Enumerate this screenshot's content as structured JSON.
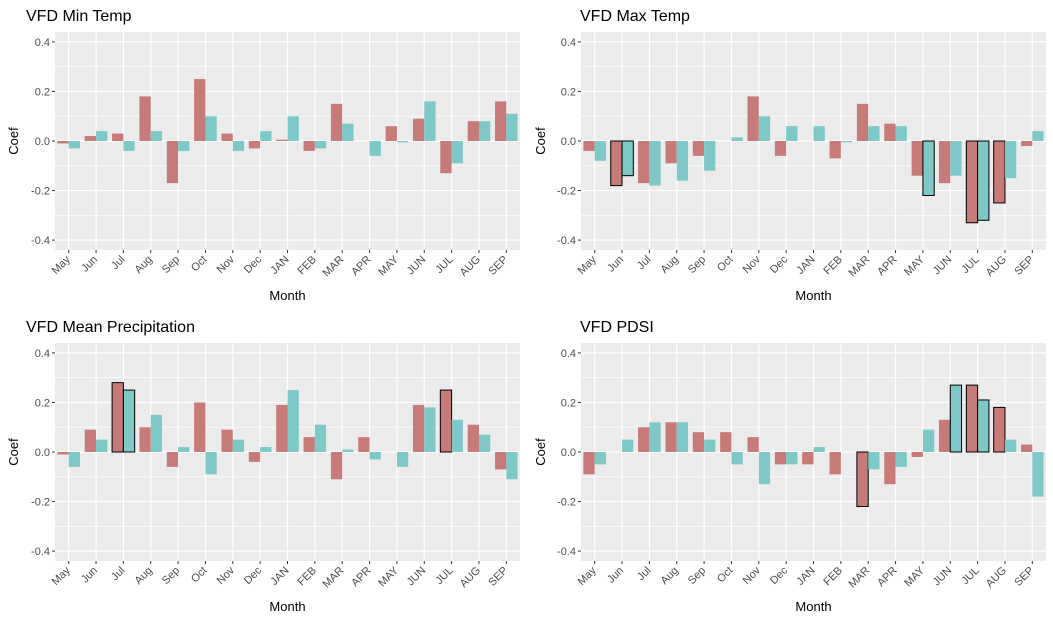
{
  "colors": {
    "red": "#c77b78",
    "cyan": "#7fc8c8",
    "panel": "#ebebeb",
    "grid": "#ffffff",
    "highlight_stroke": "#000000"
  },
  "chart_data": [
    {
      "type": "bar",
      "title": "VFD Min Temp",
      "xlabel": "Month",
      "ylabel": "Coef",
      "ylim": [
        -0.44,
        0.44
      ],
      "yticks": [
        -0.4,
        -0.2,
        0.0,
        0.2,
        0.4
      ],
      "ytick_labels": [
        "-0.4",
        "-0.2",
        "0.0",
        "0.2",
        "0.4"
      ],
      "categories": [
        "May",
        "Jun",
        "Jul",
        "Aug",
        "Sep",
        "Oct",
        "Nov",
        "Dec",
        "JAN",
        "FEB",
        "MAR",
        "APR",
        "MAY",
        "JUN",
        "JUL",
        "AUG",
        "SEP"
      ],
      "series": [
        {
          "color": "#c77b78",
          "values": [
            -0.01,
            0.02,
            0.03,
            0.18,
            -0.17,
            0.25,
            0.03,
            -0.03,
            0.005,
            -0.04,
            0.15,
            0.0,
            0.06,
            0.09,
            -0.13,
            0.08,
            0.16
          ]
        },
        {
          "color": "#7fc8c8",
          "values": [
            -0.03,
            0.04,
            -0.04,
            0.04,
            -0.04,
            0.1,
            -0.04,
            0.04,
            0.1,
            -0.03,
            0.07,
            -0.06,
            -0.005,
            0.16,
            -0.09,
            0.08,
            0.11
          ]
        }
      ],
      "highlighted": []
    },
    {
      "type": "bar",
      "title": "VFD Max Temp",
      "xlabel": "Month",
      "ylabel": "Coef",
      "ylim": [
        -0.44,
        0.44
      ],
      "yticks": [
        -0.4,
        -0.2,
        0.0,
        0.2,
        0.4
      ],
      "ytick_labels": [
        "-0.4",
        "-0.2",
        "0.0",
        "0.2",
        "0.4"
      ],
      "categories": [
        "May",
        "Jun",
        "Jul",
        "Aug",
        "Sep",
        "Oct",
        "Nov",
        "Dec",
        "JAN",
        "FEB",
        "MAR",
        "APR",
        "MAY",
        "JUN",
        "JUL",
        "AUG",
        "SEP"
      ],
      "series": [
        {
          "color": "#c77b78",
          "values": [
            -0.04,
            -0.18,
            -0.17,
            -0.09,
            -0.06,
            0.0,
            0.18,
            -0.06,
            0.0,
            -0.07,
            0.15,
            0.07,
            -0.14,
            -0.17,
            -0.33,
            -0.25,
            -0.02
          ]
        },
        {
          "color": "#7fc8c8",
          "values": [
            -0.08,
            -0.14,
            -0.18,
            -0.16,
            -0.12,
            0.015,
            0.1,
            0.06,
            0.06,
            -0.005,
            0.06,
            0.06,
            -0.22,
            -0.14,
            -0.32,
            -0.15,
            0.04
          ]
        }
      ],
      "highlighted": [
        [
          0,
          1
        ],
        [
          1,
          1
        ],
        [
          1,
          12
        ],
        [
          0,
          14
        ],
        [
          1,
          14
        ],
        [
          0,
          15
        ]
      ]
    },
    {
      "type": "bar",
      "title": "VFD Mean Precipitation",
      "xlabel": "Month",
      "ylabel": "Coef",
      "ylim": [
        -0.44,
        0.44
      ],
      "yticks": [
        -0.4,
        -0.2,
        0.0,
        0.2,
        0.4
      ],
      "ytick_labels": [
        "-0.4",
        "-0.2",
        "0.0",
        "0.2",
        "0.4"
      ],
      "categories": [
        "May",
        "Jun",
        "Jul",
        "Aug",
        "Sep",
        "Oct",
        "Nov",
        "Dec",
        "JAN",
        "FEB",
        "MAR",
        "APR",
        "MAY",
        "JUN",
        "JUL",
        "AUG",
        "SEP"
      ],
      "series": [
        {
          "color": "#c77b78",
          "values": [
            -0.01,
            0.09,
            0.28,
            0.1,
            -0.06,
            0.2,
            0.09,
            -0.04,
            0.19,
            0.06,
            -0.11,
            0.06,
            0.0,
            0.19,
            0.25,
            0.11,
            -0.07
          ]
        },
        {
          "color": "#7fc8c8",
          "values": [
            -0.06,
            0.05,
            0.25,
            0.15,
            0.02,
            -0.09,
            0.05,
            0.02,
            0.25,
            0.11,
            0.01,
            -0.03,
            -0.06,
            0.18,
            0.13,
            0.07,
            -0.11
          ]
        }
      ],
      "highlighted": [
        [
          0,
          2
        ],
        [
          1,
          2
        ],
        [
          0,
          14
        ]
      ]
    },
    {
      "type": "bar",
      "title": "VFD PDSI",
      "xlabel": "Month",
      "ylabel": "Coef",
      "ylim": [
        -0.44,
        0.44
      ],
      "yticks": [
        -0.4,
        -0.2,
        0.0,
        0.2,
        0.4
      ],
      "ytick_labels": [
        "-0.4",
        "-0.2",
        "0.0",
        "0.2",
        "0.4"
      ],
      "categories": [
        "May",
        "Jun",
        "Jul",
        "Aug",
        "Sep",
        "Oct",
        "Nov",
        "Dec",
        "JAN",
        "FEB",
        "MAR",
        "APR",
        "MAY",
        "JUN",
        "JUL",
        "AUG",
        "SEP"
      ],
      "series": [
        {
          "color": "#c77b78",
          "values": [
            -0.09,
            0.0,
            0.1,
            0.12,
            0.08,
            0.08,
            0.06,
            -0.05,
            -0.05,
            -0.09,
            -0.22,
            -0.13,
            -0.02,
            0.13,
            0.27,
            0.18,
            0.03
          ]
        },
        {
          "color": "#7fc8c8",
          "values": [
            -0.05,
            0.05,
            0.12,
            0.12,
            0.05,
            -0.05,
            -0.13,
            -0.05,
            0.02,
            0.0,
            -0.07,
            -0.06,
            0.09,
            0.27,
            0.21,
            0.05,
            -0.18
          ]
        }
      ],
      "highlighted": [
        [
          0,
          10
        ],
        [
          1,
          13
        ],
        [
          0,
          14
        ],
        [
          1,
          14
        ],
        [
          0,
          15
        ]
      ]
    }
  ]
}
